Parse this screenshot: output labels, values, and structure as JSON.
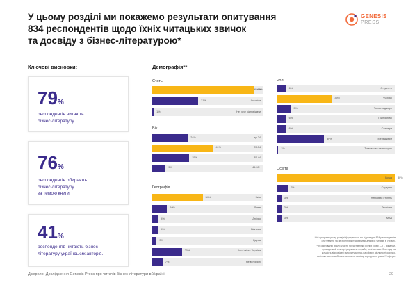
{
  "title": {
    "line1": "У цьому розділі ми покажемо результати опитування",
    "line2": "834 респондентів щодо їхніх читацьких звичок",
    "line3": "та досвіду з бізнес-літературою*"
  },
  "logo": {
    "name1": "GENESIS",
    "name2": "PRESS"
  },
  "key_findings": {
    "heading": "Ключові висновки:",
    "cards": [
      {
        "number": "79",
        "pct": "%",
        "lines": [
          "респондентів читають",
          "бізнес-літературу."
        ]
      },
      {
        "number": "76",
        "pct": "%",
        "lines": [
          "респондентів обирають",
          "бізнес-літературу",
          "за темою книги."
        ]
      },
      {
        "number": "41",
        "pct": "%",
        "lines": [
          "респондентів читають бізнес-",
          "літературу українських авторів."
        ]
      }
    ]
  },
  "demographics": {
    "heading": "Демографія**",
    "colors": {
      "highlight": "#f8b616",
      "main": "#3b2b8c",
      "track": "#ececec"
    },
    "groups": [
      {
        "title": "Стать",
        "rows": [
          {
            "value": 69,
            "value_label": "69%",
            "label": "Жінки",
            "highlight": true
          },
          {
            "value": 31,
            "value_label": "31%",
            "label": "Чоловіки",
            "highlight": false
          },
          {
            "value": 1,
            "value_label": "1%",
            "label": "Не хочу відповідати",
            "highlight": false
          }
        ]
      },
      {
        "title": "Вік",
        "rows": [
          {
            "value": 24,
            "value_label": "24%",
            "label": "до 24",
            "highlight": false
          },
          {
            "value": 41,
            "value_label": "41%",
            "label": "25-34",
            "highlight": true
          },
          {
            "value": 25,
            "value_label": "25%",
            "label": "35-44",
            "highlight": false
          },
          {
            "value": 9,
            "value_label": "9%",
            "label": "45-50+",
            "highlight": false
          }
        ]
      },
      {
        "title": "Географія",
        "rows": [
          {
            "value": 34,
            "value_label": "34%",
            "label": "Київ",
            "highlight": true
          },
          {
            "value": 10,
            "value_label": "10%",
            "label": "Львів",
            "highlight": false
          },
          {
            "value": 4,
            "value_label": "4%",
            "label": "Дніпро",
            "highlight": false
          },
          {
            "value": 4,
            "value_label": "4%",
            "label": "Вінниця",
            "highlight": false
          },
          {
            "value": 3,
            "value_label": "3%",
            "label": "Одеса",
            "highlight": false
          },
          {
            "value": 20,
            "value_label": "20%",
            "label": "Інші міста України",
            "highlight": false
          },
          {
            "value": 7,
            "value_label": "7%",
            "label": "Не в Україні",
            "highlight": false
          }
        ]
      },
      {
        "title": "Ролі",
        "rows": [
          {
            "value": 6,
            "value_label": "6%",
            "label": "Студенти",
            "highlight": false
          },
          {
            "value": 35,
            "value_label": "35%",
            "label": "Фахівці",
            "highlight": true
          },
          {
            "value": 9,
            "value_label": "9%",
            "label": "Топменеджери",
            "highlight": false
          },
          {
            "value": 6,
            "value_label": "6%",
            "label": "Підприємці",
            "highlight": false
          },
          {
            "value": 6,
            "value_label": "6%",
            "label": "Стажери",
            "highlight": false
          },
          {
            "value": 30,
            "value_label": "30%",
            "label": "Менеджери",
            "highlight": false
          },
          {
            "value": 1,
            "value_label": "1%",
            "label": "Тимчасово не працюю",
            "highlight": false
          }
        ]
      },
      {
        "title": "Освіта",
        "rows": [
          {
            "value": 80,
            "value_label": "80%",
            "label": "Вища",
            "highlight": true
          },
          {
            "value": 7,
            "value_label": "7%",
            "label": "Середня",
            "highlight": false
          },
          {
            "value": 3,
            "value_label": "3%",
            "label": "Науковий ступінь",
            "highlight": false
          },
          {
            "value": 3,
            "value_label": "3%",
            "label": "Технічна",
            "highlight": false
          },
          {
            "value": 3,
            "value_label": "3%",
            "label": "МВА",
            "highlight": false
          }
        ]
      }
    ]
  },
  "footnote": {
    "line1": "*Усі цифри в цьому розділі ґрунтуються на відповідях 834 респондентів",
    "line2": "опитування та не є репрезентативними для всіх читачів в Україні.",
    "line3": "**В опитуванні взяли участь представники різних сфер — IT, фінанси,",
    "line4": "громадський сектор і державна служба, освіта тощо. З огляду на",
    "line5": "кількість відповідей ми опитувались на сфери діяльності окремо,",
    "line6": "оскільки число вибірки становило фахівці середнього рівня IT-сфери."
  },
  "source": "Джерело: Дослідження Genesis Press про читачів бізнес-літератури в Україні.",
  "page_number": "29"
}
